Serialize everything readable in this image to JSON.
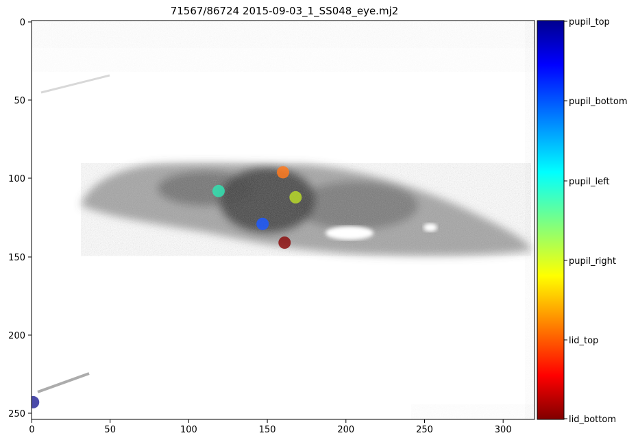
{
  "title": "71567/86724 2015-09-03_1_SS048_eye.mj2",
  "image": {
    "x_ticks": [
      "0",
      "50",
      "100",
      "150",
      "200",
      "250",
      "300"
    ],
    "y_ticks": [
      "0",
      "50",
      "100",
      "150",
      "200",
      "250"
    ],
    "x_range": [
      0,
      320
    ],
    "y_range": [
      255,
      0
    ]
  },
  "colorbar": {
    "colormap": "jet",
    "labels": [
      "pupil_top",
      "pupil_bottom",
      "pupil_left",
      "pupil_right",
      "lid_top",
      "lid_bottom"
    ]
  },
  "chart_data": {
    "type": "scatter",
    "title": "71567/86724 2015-09-03_1_SS048_eye.mj2",
    "xlim": [
      0,
      320
    ],
    "ylim": [
      255,
      0
    ],
    "points": [
      {
        "label": "pupil_top",
        "x": 1,
        "y": 244,
        "color": "#2c2c9a"
      },
      {
        "label": "pupil_bottom",
        "x": 147,
        "y": 130,
        "color": "#1f5bff"
      },
      {
        "label": "pupil_left",
        "x": 119,
        "y": 109,
        "color": "#33e0b0"
      },
      {
        "label": "pupil_right",
        "x": 168,
        "y": 113,
        "color": "#b7d82a"
      },
      {
        "label": "lid_top",
        "x": 160,
        "y": 97,
        "color": "#ff7a1f"
      },
      {
        "label": "lid_bottom",
        "x": 161,
        "y": 142,
        "color": "#8c1010"
      }
    ]
  }
}
